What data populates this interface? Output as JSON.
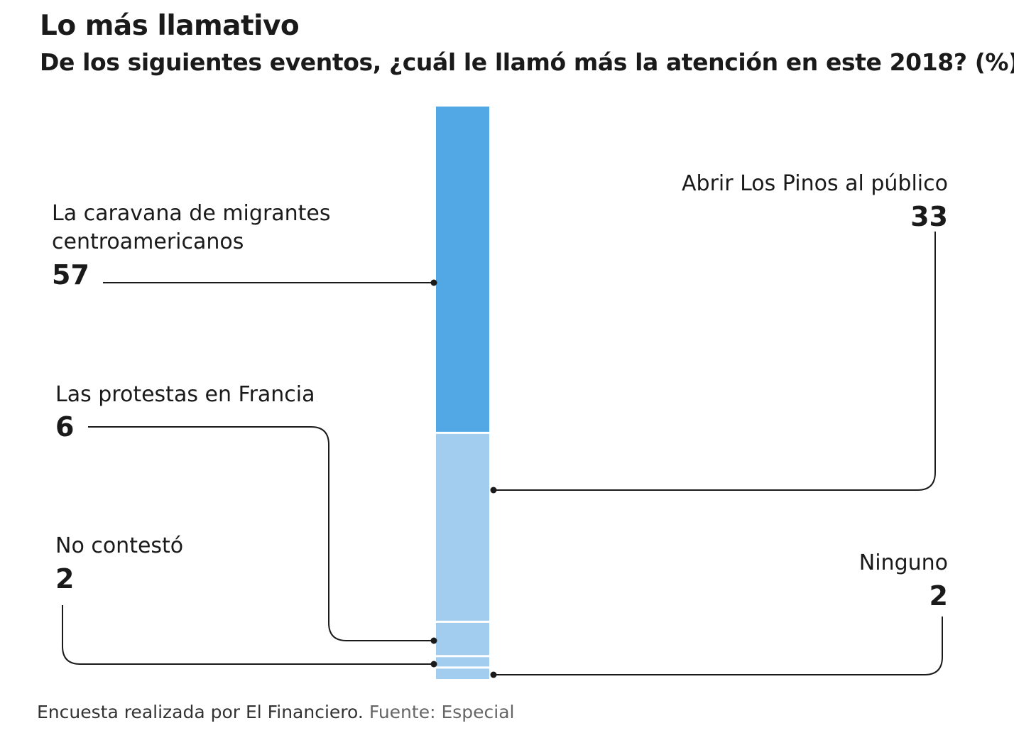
{
  "chart_data": {
    "type": "bar",
    "subtype": "stacked-single-column",
    "title": "Lo más llamativo",
    "subtitle": "De los siguientes eventos, ¿cuál le llamó más la atención en este 2018? (%)",
    "unit": "%",
    "total": 100,
    "segments": [
      {
        "label_lines": [
          "La caravana de migrantes",
          "centroamericanos"
        ],
        "value": 57,
        "color": "#52a8e4"
      },
      {
        "label_lines": [
          "Abrir Los Pinos al público"
        ],
        "value": 33,
        "color": "#a3cdef"
      },
      {
        "label_lines": [
          "Las protestas en Francia"
        ],
        "value": 6,
        "color": "#a3cdef"
      },
      {
        "label_lines": [
          "No contestó"
        ],
        "value": 2,
        "color": "#a3cdef"
      },
      {
        "label_lines": [
          "Ninguno"
        ],
        "value": 2,
        "color": "#a3cdef"
      }
    ]
  },
  "footer": {
    "note": "Encuesta realizada por El Financiero.",
    "source": "Fuente: Especial"
  }
}
